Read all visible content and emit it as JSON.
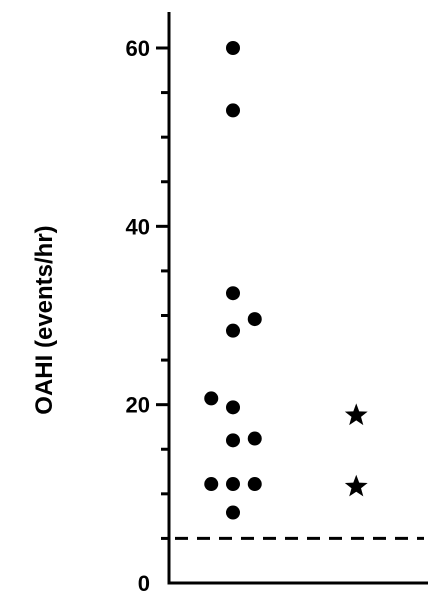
{
  "chart_data": {
    "type": "scatter",
    "ylabel": "OAHI (events/hr)",
    "ylim": [
      0,
      60
    ],
    "yticks_major": [
      0,
      20,
      40,
      60
    ],
    "ytick_labels": [
      "0",
      "20",
      "40",
      "60"
    ],
    "yticks_minor_step": 5,
    "grid": false,
    "reference_line": {
      "y": 5,
      "style": "dashed"
    },
    "series": [
      {
        "marker": "circle",
        "color": "#000000",
        "points": [
          {
            "x": 1,
            "y": 60
          },
          {
            "x": 1,
            "y": 53
          },
          {
            "x": 1,
            "y": 32.5
          },
          {
            "x": 1,
            "y": 28.3
          },
          {
            "x": 1.3,
            "y": 29.6
          },
          {
            "x": 0.7,
            "y": 20.7
          },
          {
            "x": 1,
            "y": 19.7
          },
          {
            "x": 1,
            "y": 16
          },
          {
            "x": 1.3,
            "y": 16.2
          },
          {
            "x": 0.7,
            "y": 11.1
          },
          {
            "x": 1,
            "y": 11.1
          },
          {
            "x": 1.3,
            "y": 11.1
          },
          {
            "x": 1,
            "y": 7.9
          }
        ]
      },
      {
        "marker": "star",
        "color": "#000000",
        "points": [
          {
            "x": 2.7,
            "y": 18.8
          },
          {
            "x": 2.7,
            "y": 10.8
          }
        ]
      }
    ]
  }
}
